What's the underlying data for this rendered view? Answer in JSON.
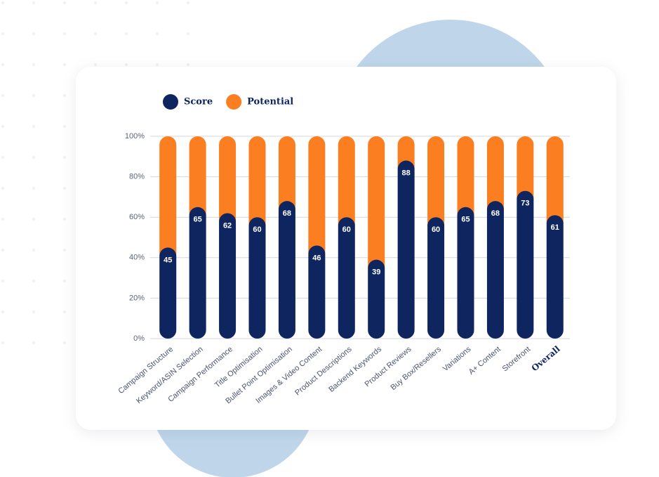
{
  "chart_data": {
    "type": "stacked-bar",
    "categories": [
      "Campaign Structure",
      "Keyword/ASIN Selection",
      "Campaign Performance",
      "Title Optimisation",
      "Bullet Point Optimisation",
      "Images & Video Content",
      "Product Descriptions",
      "Backend Keywords",
      "Product Reviews",
      "Buy Box/Resellers",
      "Variations",
      "A+ Content",
      "Storefront",
      "Overall"
    ],
    "series": [
      {
        "name": "Score",
        "color": "#0f2560",
        "values": [
          45,
          65,
          62,
          60,
          68,
          46,
          60,
          39,
          88,
          60,
          65,
          68,
          73,
          61
        ]
      },
      {
        "name": "Potential",
        "color": "#fb7e21",
        "values": [
          55,
          35,
          38,
          40,
          32,
          54,
          40,
          61,
          12,
          40,
          35,
          32,
          27,
          39
        ]
      }
    ],
    "ylim": [
      0,
      100
    ],
    "yticks": [
      {
        "value": 0,
        "label": "0%"
      },
      {
        "value": 20,
        "label": "20%"
      },
      {
        "value": 40,
        "label": "40%"
      },
      {
        "value": 60,
        "label": "60%"
      },
      {
        "value": 80,
        "label": "80%"
      },
      {
        "value": 100,
        "label": "100%"
      }
    ],
    "grid": true
  }
}
